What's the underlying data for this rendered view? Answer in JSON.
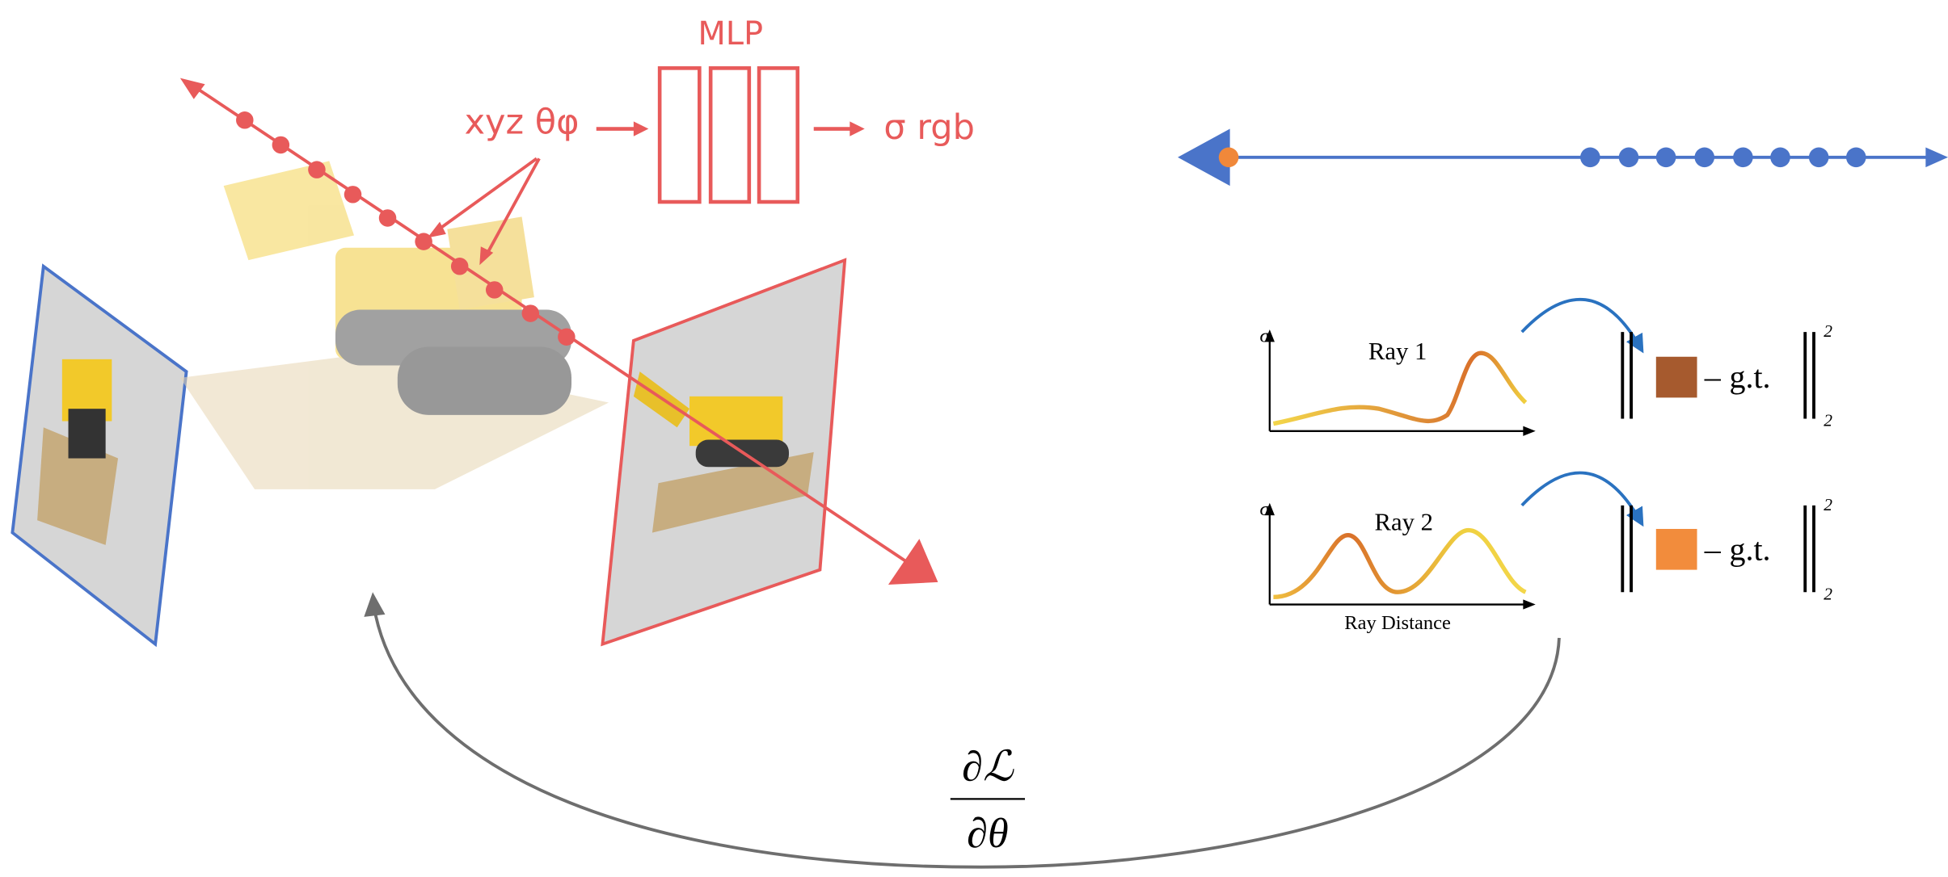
{
  "mlp": {
    "title": "MLP",
    "input": "xyz θφ",
    "output": "σ rgb"
  },
  "plots": [
    {
      "y_label": "σ",
      "label": "Ray 1"
    },
    {
      "y_label": "σ",
      "label": "Ray 2",
      "x_label": "Ray Distance"
    }
  ],
  "losses": [
    {
      "minus": "–",
      "target": "g.t.",
      "superscript": "2",
      "subscript": "2"
    },
    {
      "minus": "–",
      "target": "g.t.",
      "superscript": "2",
      "subscript": "2"
    }
  ],
  "gradient": {
    "numerator": "∂ℒ",
    "denominator": "∂θ"
  }
}
